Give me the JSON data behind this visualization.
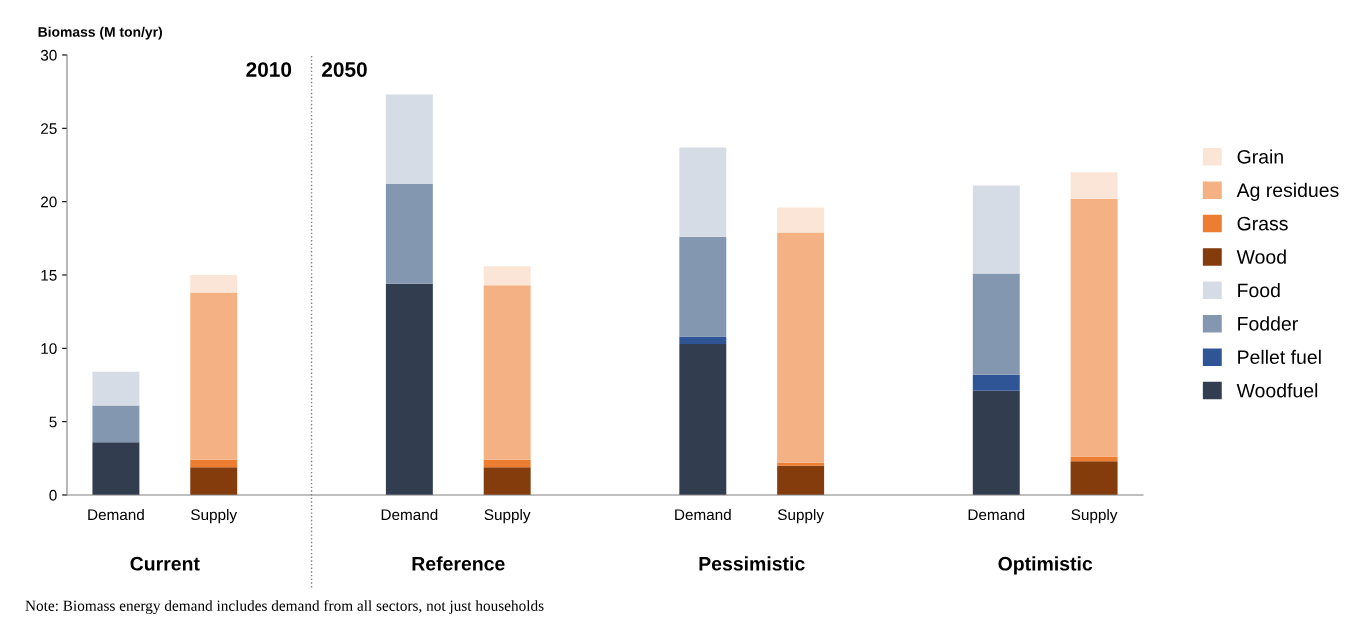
{
  "chart_data": {
    "type": "bar",
    "stacked": true,
    "ylabel": "Biomass (M ton/yr)",
    "categories": [
      "Demand",
      "Supply",
      null,
      "Demand",
      "Supply",
      null,
      "Demand",
      "Supply",
      null,
      "Demand",
      "Supply"
    ],
    "series": [
      {
        "name": "Woodfuel",
        "color": "#323e50",
        "values": [
          3.6,
          null,
          null,
          14.4,
          null,
          null,
          10.3,
          null,
          null,
          7.1,
          null
        ]
      },
      {
        "name": "Pellet fuel",
        "color": "#2f5597",
        "values": [
          null,
          null,
          null,
          null,
          null,
          null,
          0.5,
          null,
          null,
          1.1,
          null
        ]
      },
      {
        "name": "Fodder",
        "color": "#8497b0",
        "values": [
          2.5,
          null,
          null,
          6.8,
          null,
          null,
          6.8,
          null,
          null,
          6.9,
          null
        ]
      },
      {
        "name": "Food",
        "color": "#d6dce5",
        "values": [
          2.3,
          null,
          null,
          6.1,
          null,
          null,
          6.1,
          null,
          null,
          6.0,
          null
        ]
      },
      {
        "name": "Wood",
        "color": "#843c0c",
        "values": [
          null,
          1.9,
          null,
          null,
          1.9,
          null,
          null,
          2.0,
          null,
          null,
          2.3
        ]
      },
      {
        "name": "Grass",
        "color": "#ed7d31",
        "values": [
          null,
          0.5,
          null,
          null,
          0.5,
          null,
          null,
          0.2,
          null,
          null,
          0.3
        ]
      },
      {
        "name": "Ag residues",
        "color": "#f4b183",
        "values": [
          null,
          11.4,
          null,
          null,
          11.9,
          null,
          null,
          15.7,
          null,
          null,
          17.6
        ]
      },
      {
        "name": "Grain",
        "color": "#fbe5d6",
        "values": [
          null,
          1.2,
          null,
          null,
          1.3,
          null,
          null,
          1.7,
          null,
          null,
          1.8
        ]
      }
    ],
    "ylim": [
      0,
      30
    ],
    "yticks": [
      0,
      5,
      10,
      15,
      20,
      25,
      30
    ],
    "legend": "right",
    "annotations": [
      "2010",
      "2050",
      "Current",
      "Reference",
      "Pessimistic",
      "Optimistic",
      "Note: Biomass energy demand includes demand from all sectors, not just households"
    ]
  }
}
